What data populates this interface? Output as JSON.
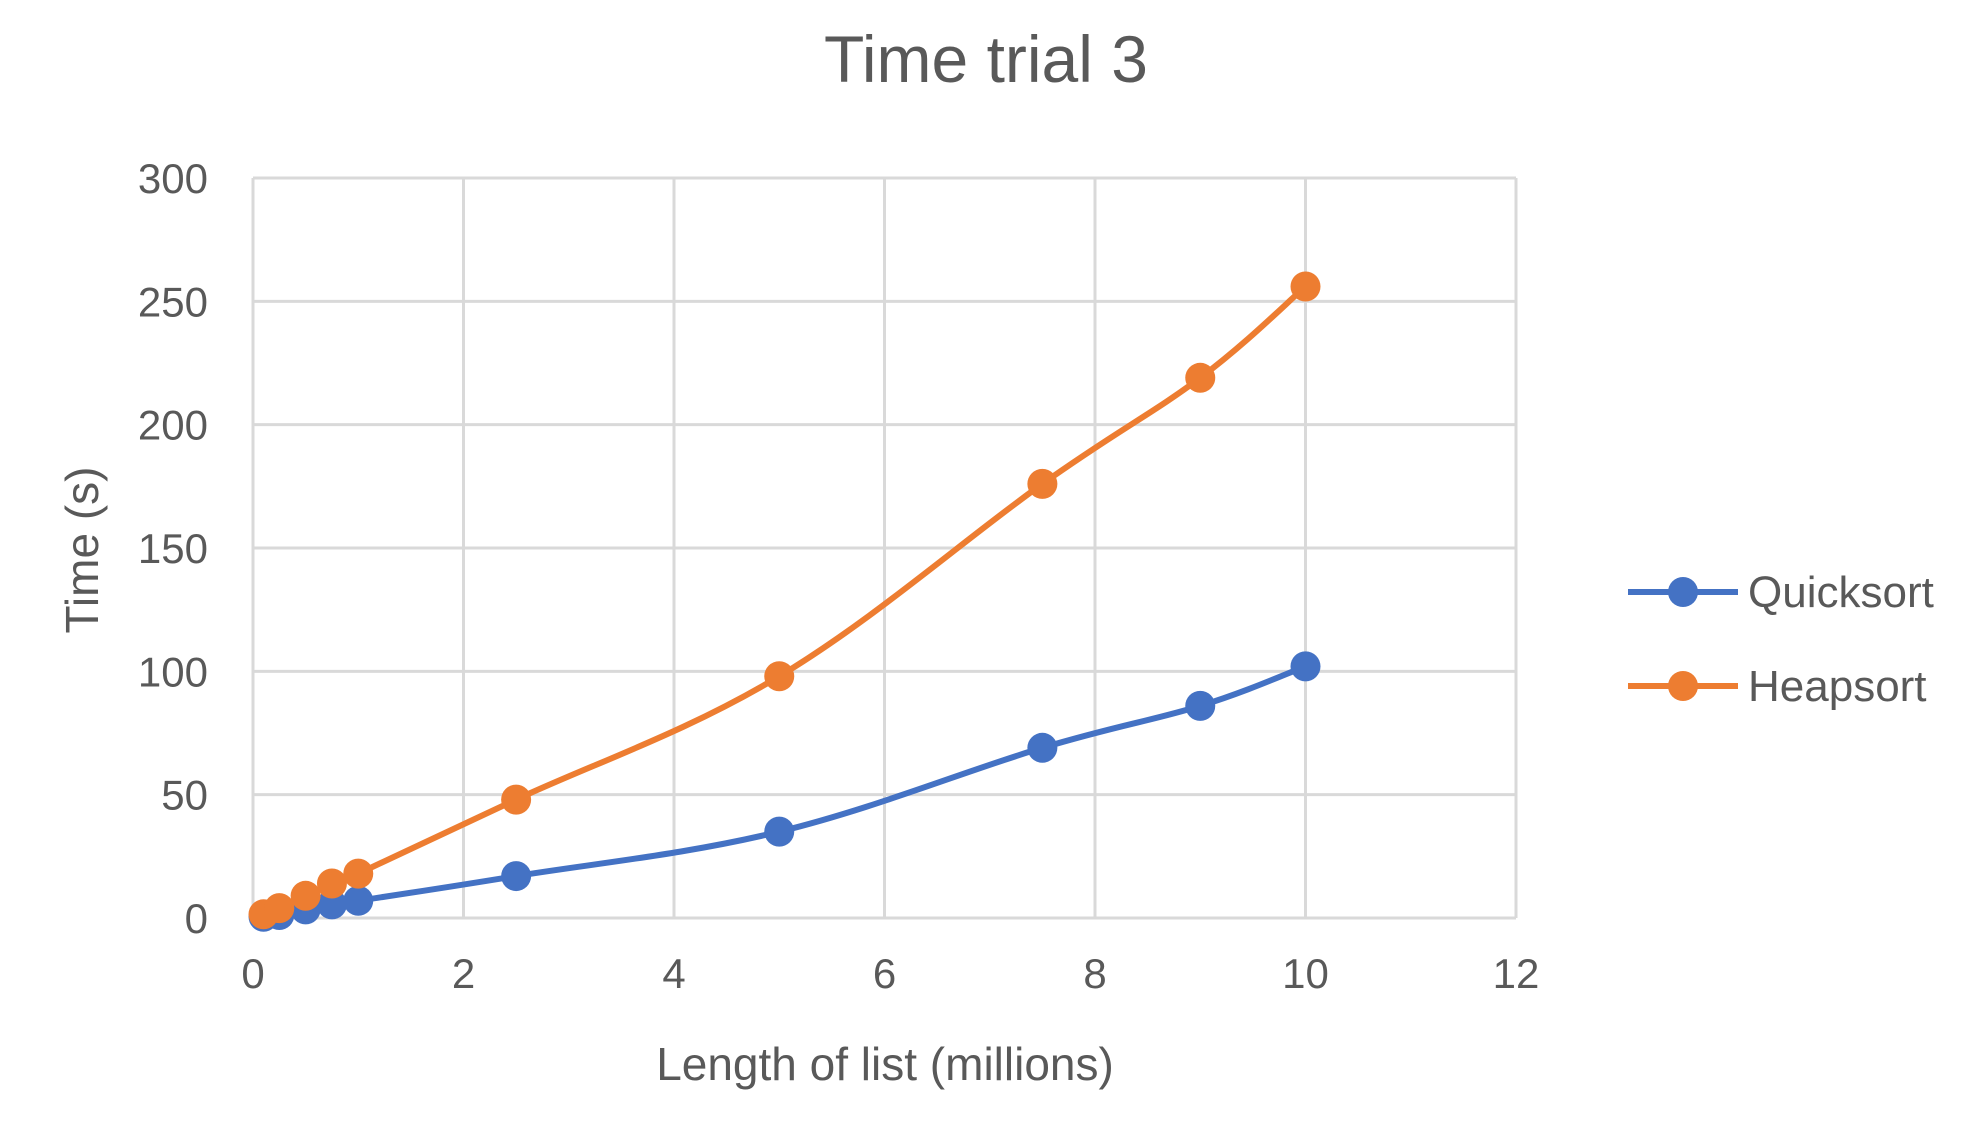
{
  "chart_data": {
    "type": "scatter",
    "title": "Time trial 3",
    "xlabel": "Length of list (millions)",
    "ylabel": "Time (s)",
    "xlim": [
      0,
      12
    ],
    "ylim": [
      0,
      300
    ],
    "xticks": [
      0,
      2,
      4,
      6,
      8,
      10,
      12
    ],
    "yticks": [
      0,
      50,
      100,
      150,
      200,
      250,
      300
    ],
    "grid": true,
    "legend_position": "right",
    "series": [
      {
        "name": "Quicksort",
        "color": "#4472C4",
        "points": [
          {
            "x": 0.1,
            "y": 0.5
          },
          {
            "x": 0.25,
            "y": 1.2
          },
          {
            "x": 0.5,
            "y": 3.5
          },
          {
            "x": 0.75,
            "y": 5.5
          },
          {
            "x": 1,
            "y": 7
          },
          {
            "x": 2.5,
            "y": 17
          },
          {
            "x": 5,
            "y": 35
          },
          {
            "x": 7.5,
            "y": 69
          },
          {
            "x": 9,
            "y": 86
          },
          {
            "x": 10,
            "y": 102
          }
        ]
      },
      {
        "name": "Heapsort",
        "color": "#ED7D31",
        "points": [
          {
            "x": 0.1,
            "y": 1.5
          },
          {
            "x": 0.25,
            "y": 4
          },
          {
            "x": 0.5,
            "y": 9
          },
          {
            "x": 0.75,
            "y": 14
          },
          {
            "x": 1,
            "y": 18
          },
          {
            "x": 2.5,
            "y": 48
          },
          {
            "x": 5,
            "y": 98
          },
          {
            "x": 7.5,
            "y": 176
          },
          {
            "x": 9,
            "y": 219
          },
          {
            "x": 10,
            "y": 256
          }
        ]
      }
    ]
  }
}
